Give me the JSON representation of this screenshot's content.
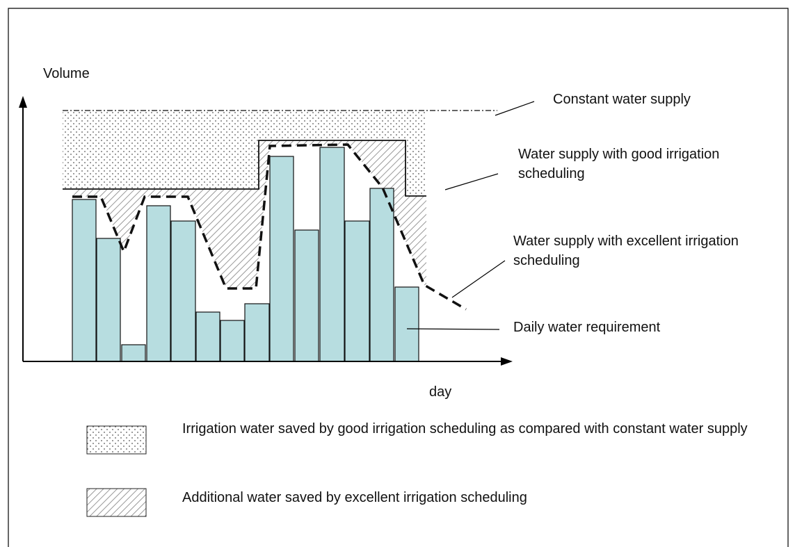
{
  "axes": {
    "y_label": "Volume",
    "x_label": "day"
  },
  "annotations": [
    "Constant water supply",
    "Water supply with good irrigation scheduling",
    "Water supply with excellent irrigation scheduling",
    "Daily water requirement"
  ],
  "legend": [
    "Irrigation water saved by good irrigation scheduling as compared with constant water supply",
    "Additional water saved by excellent irrigation scheduling"
  ]
}
